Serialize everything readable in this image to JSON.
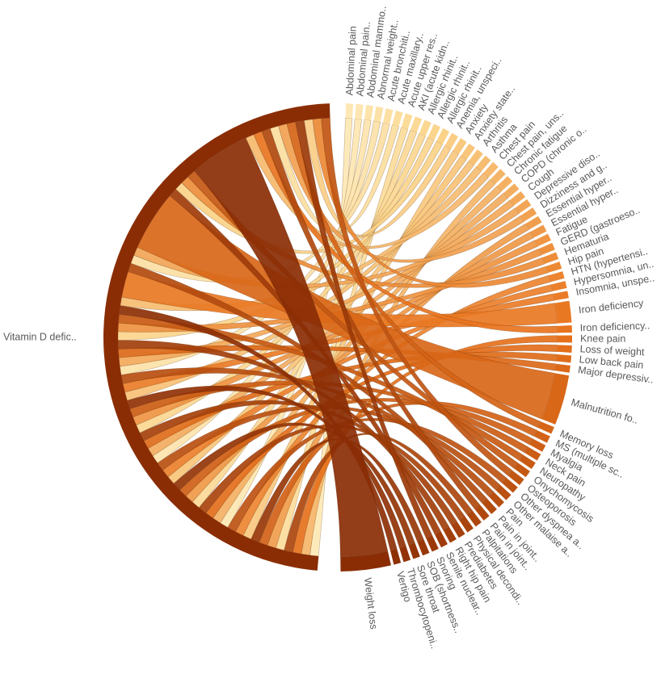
{
  "chart_data": {
    "type": "chord",
    "colors": {
      "dark": "#8a2d05",
      "mid": "#e8721c",
      "light": "#fbd58c",
      "palest": "#fde8b5",
      "ribbon_stroke": "#5a2a08"
    },
    "hub": {
      "label": "Vitamin D defic..",
      "value": 100
    },
    "nodes": [
      {
        "label": "Abdominal pain",
        "value": 1
      },
      {
        "label": "Abdominal pain..",
        "value": 1
      },
      {
        "label": "Abdominal mammo..",
        "value": 1
      },
      {
        "label": "Abnormal weight..",
        "value": 1
      },
      {
        "label": "Acute bronchiti..",
        "value": 1
      },
      {
        "label": "Acute maxillary..",
        "value": 1
      },
      {
        "label": "Acute upper res..",
        "value": 1
      },
      {
        "label": "AKI (acute kidn..",
        "value": 1
      },
      {
        "label": "Allergic rhinit..",
        "value": 1
      },
      {
        "label": "Allergic rhinit..",
        "value": 1
      },
      {
        "label": "Allergic rhinit..",
        "value": 1
      },
      {
        "label": "Anemia, unspeci..",
        "value": 1
      },
      {
        "label": "Anxiety",
        "value": 1
      },
      {
        "label": "Anxiety state..",
        "value": 1
      },
      {
        "label": "Arthritis",
        "value": 1
      },
      {
        "label": "Asthma",
        "value": 1
      },
      {
        "label": "Chest pain",
        "value": 1
      },
      {
        "label": "Chest pain, uns..",
        "value": 1
      },
      {
        "label": "Chronic fatigue",
        "value": 1
      },
      {
        "label": "COPD (chronic o..",
        "value": 1
      },
      {
        "label": "Cough",
        "value": 1
      },
      {
        "label": "Depressive diso..",
        "value": 1
      },
      {
        "label": "Dizziness and g..",
        "value": 1
      },
      {
        "label": "Essential hyper..",
        "value": 1
      },
      {
        "label": "Essential hyper..",
        "value": 1
      },
      {
        "label": "Fatigue",
        "value": 1
      },
      {
        "label": "GERD (gastroeso..",
        "value": 1
      },
      {
        "label": "Hematuria",
        "value": 1
      },
      {
        "label": "Hip pain",
        "value": 1
      },
      {
        "label": "HTN (hypertensi..",
        "value": 1
      },
      {
        "label": "Hypersomnia, un..",
        "value": 1
      },
      {
        "label": "Insomnia, unspe..",
        "value": 1
      },
      {
        "label": "Iron deficiency",
        "value": 3
      },
      {
        "label": "Iron deficiency..",
        "value": 1
      },
      {
        "label": "Knee pain",
        "value": 1
      },
      {
        "label": "Loss of weight",
        "value": 1
      },
      {
        "label": "Low back pain",
        "value": 1
      },
      {
        "label": "Major depressiv..",
        "value": 1
      },
      {
        "label": "Malnutrition fo..",
        "value": 7
      },
      {
        "label": "Memory loss",
        "value": 1
      },
      {
        "label": "MS (multiple sc..",
        "value": 1
      },
      {
        "label": "Myalgia",
        "value": 1
      },
      {
        "label": "Neck pain",
        "value": 1
      },
      {
        "label": "Neuropathy",
        "value": 1
      },
      {
        "label": "Onychomycosis",
        "value": 1
      },
      {
        "label": "Osteoporosis",
        "value": 1
      },
      {
        "label": "Other dyspnea a..",
        "value": 1
      },
      {
        "label": "Other malaise a..",
        "value": 1
      },
      {
        "label": "Pain",
        "value": 1
      },
      {
        "label": "Pain in joint..",
        "value": 1
      },
      {
        "label": "Pain in joint..",
        "value": 1
      },
      {
        "label": "Palpitations",
        "value": 1
      },
      {
        "label": "Physical decondi..",
        "value": 1
      },
      {
        "label": "Prediabetes",
        "value": 1
      },
      {
        "label": "Right hip pain",
        "value": 1
      },
      {
        "label": "Senile nuclear..",
        "value": 1
      },
      {
        "label": "Snoring",
        "value": 1
      },
      {
        "label": "SOB (shortness..",
        "value": 1
      },
      {
        "label": "Sore throat",
        "value": 1
      },
      {
        "label": "Thrombocytopeni..",
        "value": 1
      },
      {
        "label": "Vertigo",
        "value": 1
      },
      {
        "label": "Weight loss",
        "value": 7
      }
    ]
  }
}
